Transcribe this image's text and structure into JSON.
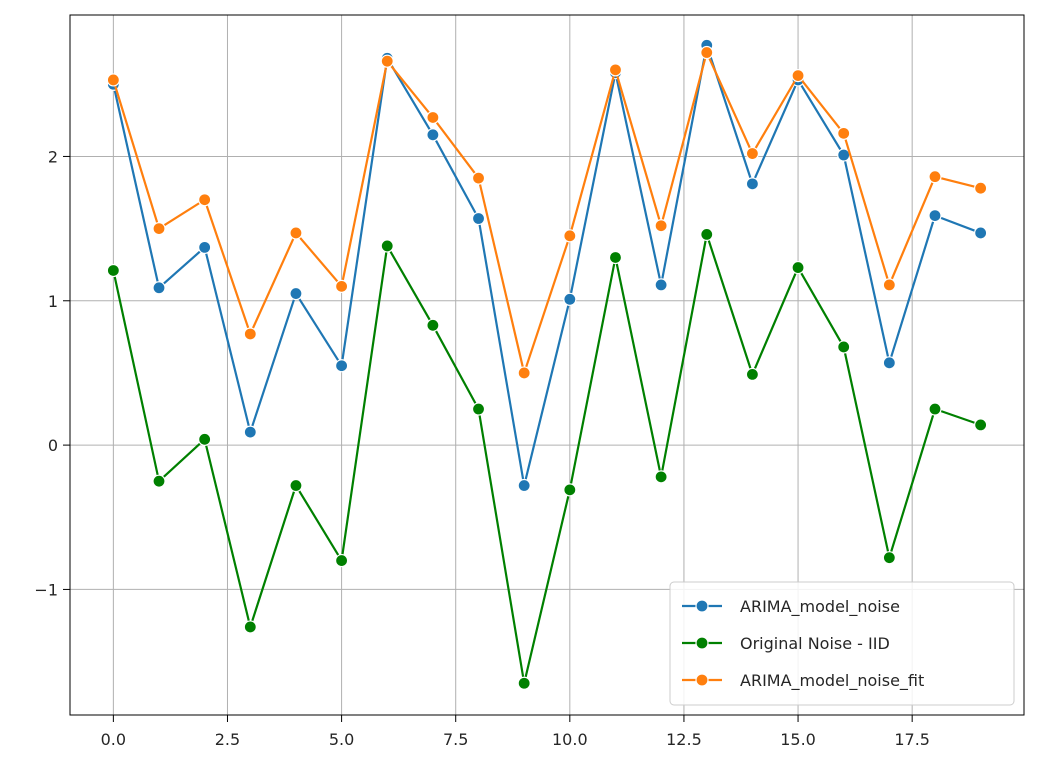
{
  "chart_data": {
    "type": "line",
    "title": "",
    "xlabel": "",
    "ylabel": "",
    "x": [
      0,
      1,
      2,
      3,
      4,
      5,
      6,
      7,
      8,
      9,
      10,
      11,
      12,
      13,
      14,
      15,
      16,
      17,
      18,
      19
    ],
    "xlim": [
      -0.95,
      19.95
    ],
    "ylim": [
      -1.87,
      2.98
    ],
    "x_ticks": [
      0.0,
      2.5,
      5.0,
      7.5,
      10.0,
      12.5,
      15.0,
      17.5
    ],
    "x_tick_labels": [
      "0.0",
      "2.5",
      "5.0",
      "7.5",
      "10.0",
      "12.5",
      "15.0",
      "17.5"
    ],
    "y_ticks": [
      -1,
      0,
      1,
      2
    ],
    "y_tick_labels": [
      "−1",
      "0",
      "1",
      "2"
    ],
    "grid": true,
    "legend_position": "lower-right",
    "series": [
      {
        "name": "ARIMA_model_noise",
        "color": "#1f77b4",
        "marker": "circle",
        "values": [
          2.5,
          1.09,
          1.37,
          0.09,
          1.05,
          0.55,
          2.68,
          2.15,
          1.57,
          -0.28,
          1.01,
          2.58,
          1.11,
          2.77,
          1.81,
          2.53,
          2.01,
          0.57,
          1.59,
          1.47
        ]
      },
      {
        "name": "Original Noise - IID",
        "color": "#008000",
        "marker": "circle",
        "values": [
          1.21,
          -0.25,
          0.04,
          -1.26,
          -0.28,
          -0.8,
          1.38,
          0.83,
          0.25,
          -1.65,
          -0.31,
          1.3,
          -0.22,
          1.46,
          0.49,
          1.23,
          0.68,
          -0.78,
          0.25,
          0.14
        ]
      },
      {
        "name": "ARIMA_model_noise_fit",
        "color": "#ff7f0e",
        "marker": "circle",
        "values": [
          2.53,
          1.5,
          1.7,
          0.77,
          1.47,
          1.1,
          2.66,
          2.27,
          1.85,
          0.5,
          1.45,
          2.6,
          1.52,
          2.72,
          2.02,
          2.56,
          2.16,
          1.11,
          1.86,
          1.78
        ]
      }
    ]
  }
}
